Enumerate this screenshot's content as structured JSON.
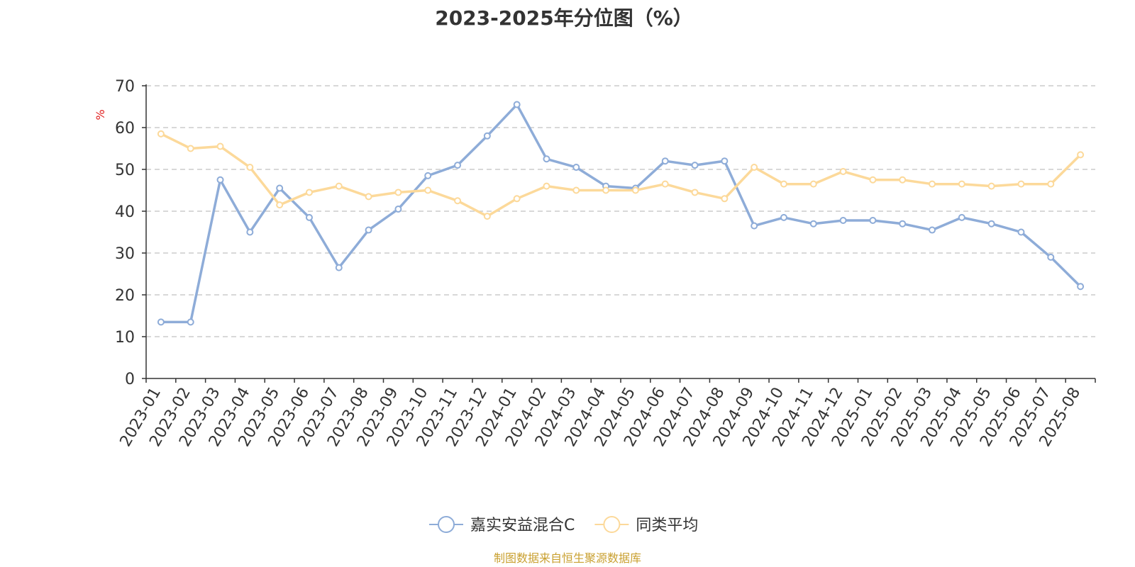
{
  "chart_data": {
    "type": "line",
    "title": "2023-2025年分位图（%）",
    "ylabel": "%",
    "xlabel": "",
    "ylim": [
      0,
      70
    ],
    "y_ticks": [
      0,
      10,
      20,
      30,
      40,
      50,
      60,
      70
    ],
    "grid": true,
    "legend_position": "bottom-center",
    "categories": [
      "2023-01",
      "2023-02",
      "2023-03",
      "2023-04",
      "2023-05",
      "2023-06",
      "2023-07",
      "2023-08",
      "2023-09",
      "2023-10",
      "2023-11",
      "2023-12",
      "2024-01",
      "2024-02",
      "2024-03",
      "2024-04",
      "2024-05",
      "2024-06",
      "2024-07",
      "2024-08",
      "2024-09",
      "2024-10",
      "2024-11",
      "2024-12",
      "2025-01",
      "2025-02",
      "2025-03",
      "2025-04",
      "2025-05",
      "2025-06",
      "2025-07",
      "2025-08"
    ],
    "series": [
      {
        "name": "嘉实安益混合C",
        "color": "#8EACD8",
        "values": [
          13.5,
          13.5,
          47.5,
          35,
          45.5,
          38.5,
          26.5,
          35.5,
          40.5,
          48.5,
          51,
          58,
          65.5,
          52.5,
          50.5,
          46,
          45.5,
          52,
          51,
          52,
          36.5,
          38.5,
          37,
          37.8,
          37.8,
          37,
          35.5,
          38.5,
          37,
          35,
          29,
          22
        ]
      },
      {
        "name": "同类平均",
        "color": "#FCD99A",
        "values": [
          58.5,
          55,
          55.5,
          50.5,
          41.5,
          44.5,
          46,
          43.5,
          44.5,
          45,
          42.5,
          38.8,
          43,
          46,
          45,
          45,
          45,
          46.5,
          44.5,
          43,
          50.5,
          46.5,
          46.5,
          49.5,
          47.5,
          47.5,
          46.5,
          46.5,
          46,
          46.5,
          46.5,
          53.5
        ]
      }
    ],
    "source": "制图数据来自恒生聚源数据库",
    "source_color": "#C9A030",
    "unit_color": "#E02020"
  }
}
